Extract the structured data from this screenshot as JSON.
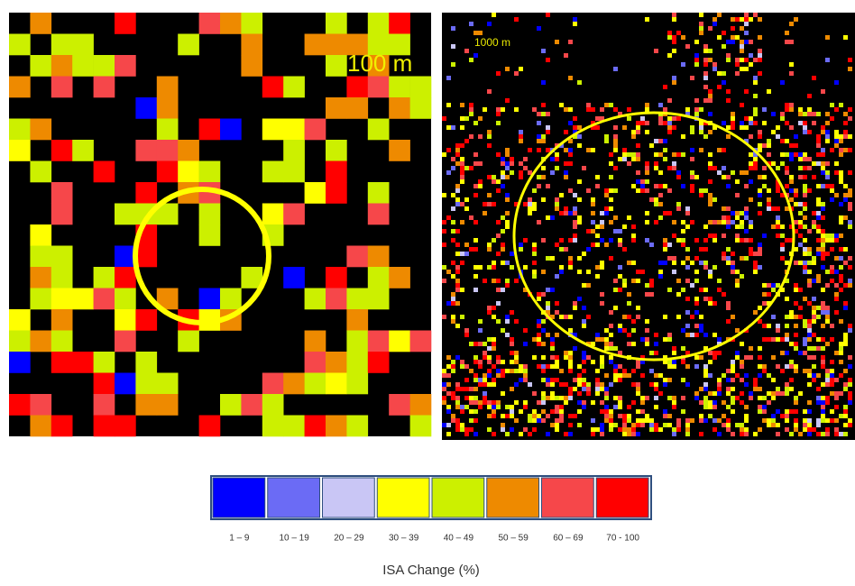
{
  "panels": [
    {
      "label": "100 m"
    },
    {
      "label": "1000 m"
    }
  ],
  "legend": {
    "title": "ISA Change (%)",
    "items": [
      {
        "label": "1 – 9",
        "color": "#0000ff"
      },
      {
        "label": "10 – 19",
        "color": "#6b6bf5"
      },
      {
        "label": "20 – 29",
        "color": "#c9c6f5"
      },
      {
        "label": "30 – 39",
        "color": "#ffff00"
      },
      {
        "label": "40 – 49",
        "color": "#ccf000"
      },
      {
        "label": "50 – 59",
        "color": "#ee8a00"
      },
      {
        "label": "60 – 69",
        "color": "#f6474a"
      },
      {
        "label": "70 - 100",
        "color": "#ff0000"
      }
    ]
  }
}
